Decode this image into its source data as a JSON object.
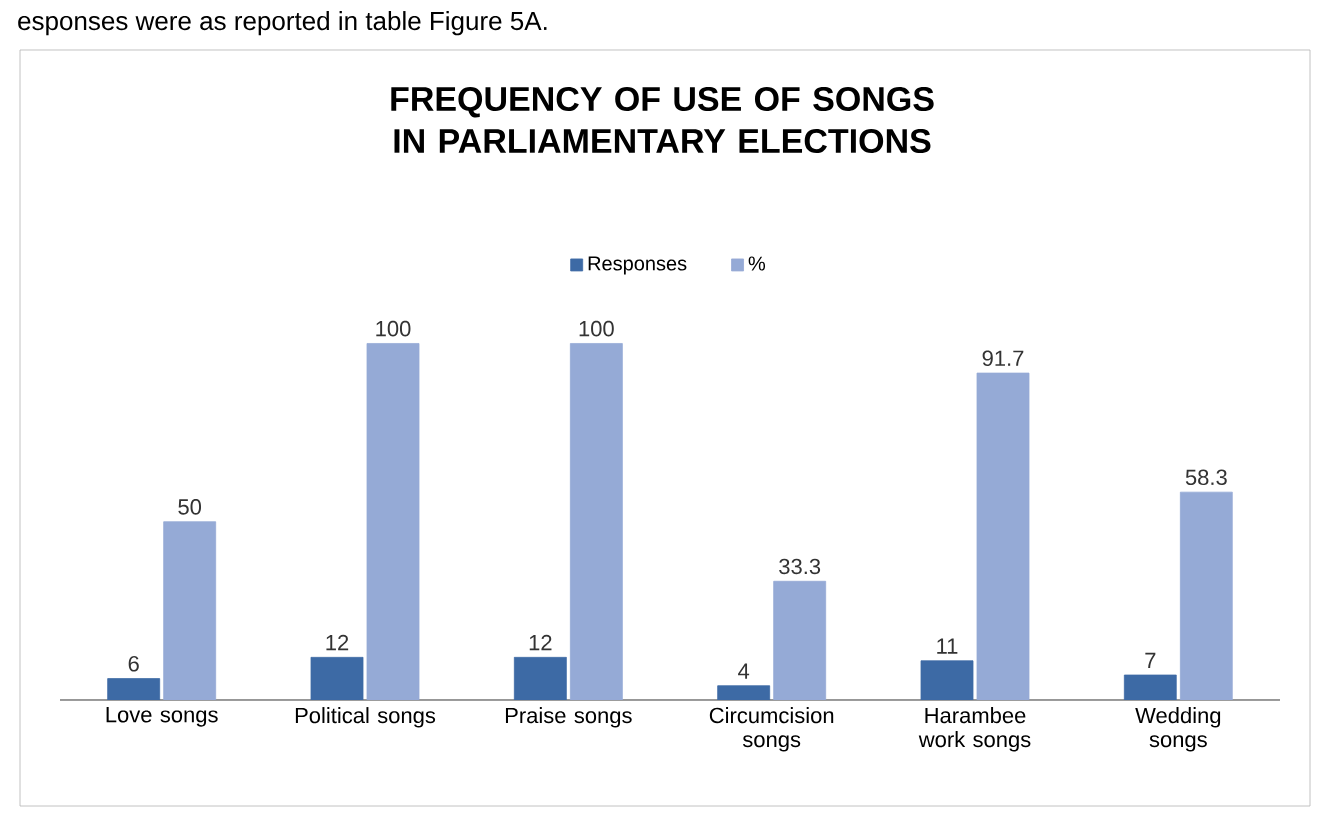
{
  "chart_data": {
    "type": "bar",
    "title": "FREQUENCY OF USE OF SONGS IN PARLIAMENTARY ELECTIONS",
    "categories": [
      "Love songs",
      "Political songs",
      "Praise songs",
      "Circumcision songs",
      "Harambee work songs",
      "Wedding songs"
    ],
    "series": [
      {
        "name": "Responses",
        "color": "#3d6aa5",
        "values": [
          6,
          12,
          12,
          4,
          11,
          7
        ]
      },
      {
        "name": "%",
        "color": "#95aad6",
        "values": [
          50,
          100,
          100,
          33.3,
          91.7,
          58.3
        ]
      }
    ],
    "data_labels": true,
    "legend": "top",
    "annotations": [
      "esponses were as reported in table Figure 5A."
    ]
  }
}
